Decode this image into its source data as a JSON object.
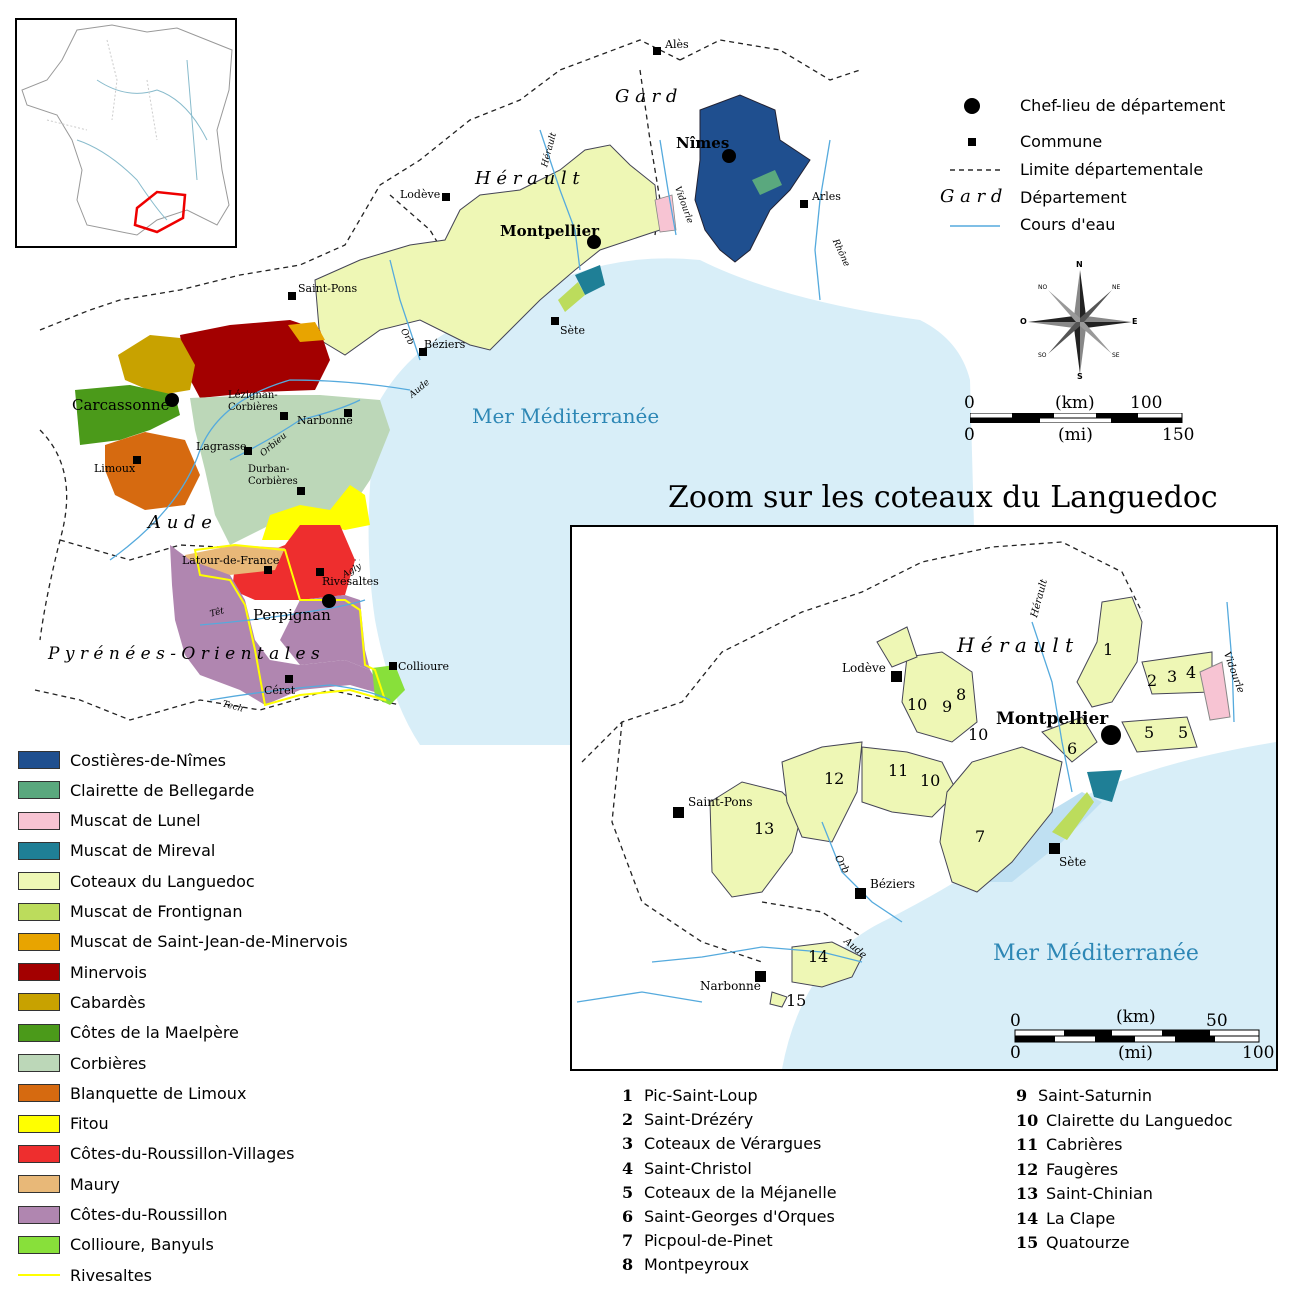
{
  "colors": {
    "sea": "#cfe9f6",
    "river": "#55aadd",
    "costieres": "#1f4f8f",
    "clairette_bellegarde": "#5aa87e",
    "muscat_lunel": "#f7c4d3",
    "muscat_mireval": "#1f7f96",
    "coteaux_languedoc": "#eef7b5",
    "muscat_frontignan": "#bcdc5c",
    "muscat_st_jean": "#e8a400",
    "minervois": "#a30000",
    "cabardes": "#c8a200",
    "maelpere": "#4b9a1a",
    "corbieres": "#bcd7b8",
    "limoux": "#d66a10",
    "fitou": "#ffff00",
    "roussillon_villages": "#ee2e2e",
    "maury": "#e8b878",
    "roussillon": "#b086b0",
    "collioure": "#88e03a",
    "rivesaltes": "#ffff00"
  },
  "map": {
    "departments": [
      "G a r d",
      "H é r a u l t",
      "A u d e",
      "P y r é n é e s - O r i e n t a l e s"
    ],
    "prefectures": [
      "Nîmes",
      "Montpellier",
      "Carcassonne",
      "Perpignan"
    ],
    "communes": [
      "Alès",
      "Lodève",
      "Arles",
      "Saint-Pons",
      "Béziers",
      "Sète",
      "Lézignan-Corbières",
      "Narbonne",
      "Lagrasse",
      "Limoux",
      "Durban-Corbières",
      "Latour-de-France",
      "Rivesaltes",
      "Collioure",
      "Céret"
    ],
    "rivers": [
      "Hérault",
      "Vidourle",
      "Rhône",
      "Orb",
      "Aude",
      "Orbieu",
      "Agly",
      "Têt",
      "Tech"
    ],
    "sea_label": "Mer Méditerranée"
  },
  "key": {
    "items": [
      {
        "label": "Chef-lieu de département",
        "icon": "prefecture-dot-icon"
      },
      {
        "label": "Commune",
        "icon": "commune-square-icon"
      },
      {
        "label": "Limite départementale",
        "icon": "dashed-line-icon"
      },
      {
        "label": "Département",
        "sample": "G a r d"
      },
      {
        "label": "Cours d'eau",
        "icon": "river-line-icon"
      }
    ],
    "compass": {
      "n": "N",
      "s": "S",
      "e": "E",
      "o": "O",
      "ne": "NE",
      "no": "NO",
      "se": "SE",
      "so": "SO"
    },
    "scale": {
      "km_label": "(km)",
      "mi_label": "(mi)",
      "zero": "0",
      "km_max": "100",
      "mi_max": "150"
    }
  },
  "zoom": {
    "title": "Zoom sur les coteaux du Languedoc",
    "department": "H é r a u l t",
    "city": "Montpellier",
    "communes": [
      "Lodève",
      "Saint-Pons",
      "Béziers",
      "Sète",
      "Narbonne"
    ],
    "rivers": [
      "Hérault",
      "Vidourle",
      "Orb",
      "Aude"
    ],
    "sea_label": "Mer Méditerranée",
    "area_numbers": [
      "1",
      "2",
      "3",
      "4",
      "5",
      "5",
      "6",
      "7",
      "8",
      "9",
      "10",
      "10",
      "10",
      "11",
      "12",
      "13",
      "14",
      "15"
    ],
    "scale": {
      "km_label": "(km)",
      "mi_label": "(mi)",
      "zero": "0",
      "km_max": "50",
      "mi_max": "100"
    }
  },
  "legend": [
    {
      "label": "Costières-de-Nîmes",
      "color": "#1f4f8f"
    },
    {
      "label": "Clairette de Bellegarde",
      "color": "#5aa87e"
    },
    {
      "label": "Muscat de Lunel",
      "color": "#f7c4d3"
    },
    {
      "label": "Muscat de Mireval",
      "color": "#1f7f96"
    },
    {
      "label": "Coteaux du Languedoc",
      "color": "#eef7b5"
    },
    {
      "label": "Muscat de Frontignan",
      "color": "#bcdc5c"
    },
    {
      "label": "Muscat de Saint-Jean-de-Minervois",
      "color": "#e8a400"
    },
    {
      "label": "Minervois",
      "color": "#a30000"
    },
    {
      "label": "Cabardès",
      "color": "#c8a200"
    },
    {
      "label": "Côtes de la Maelpère",
      "color": "#4b9a1a"
    },
    {
      "label": "Corbières",
      "color": "#bcd7b8"
    },
    {
      "label": "Blanquette de Limoux",
      "color": "#d66a10"
    },
    {
      "label": "Fitou",
      "color": "#ffff00"
    },
    {
      "label": "Côtes-du-Roussillon-Villages",
      "color": "#ee2e2e"
    },
    {
      "label": "Maury",
      "color": "#e8b878"
    },
    {
      "label": "Côtes-du-Roussillon",
      "color": "#b086b0"
    },
    {
      "label": "Collioure, Banyuls",
      "color": "#88e03a"
    },
    {
      "label": "Rivesaltes",
      "color": "#ffff00",
      "line": true
    }
  ],
  "numbered_list": [
    {
      "n": "1",
      "label": "Pic-Saint-Loup"
    },
    {
      "n": "2",
      "label": "Saint-Drézéry"
    },
    {
      "n": "3",
      "label": "Coteaux de Vérargues"
    },
    {
      "n": "4",
      "label": "Saint-Christol"
    },
    {
      "n": "5",
      "label": "Coteaux de la Méjanelle"
    },
    {
      "n": "6",
      "label": "Saint-Georges d'Orques"
    },
    {
      "n": "7",
      "label": "Picpoul-de-Pinet"
    },
    {
      "n": "8",
      "label": "Montpeyroux"
    },
    {
      "n": "9",
      "label": "Saint-Saturnin"
    },
    {
      "n": "10",
      "label": "Clairette du Languedoc"
    },
    {
      "n": "11",
      "label": "Cabrières"
    },
    {
      "n": "12",
      "label": "Faugères"
    },
    {
      "n": "13",
      "label": "Saint-Chinian"
    },
    {
      "n": "14",
      "label": "La Clape"
    },
    {
      "n": "15",
      "label": "Quatourze"
    }
  ]
}
